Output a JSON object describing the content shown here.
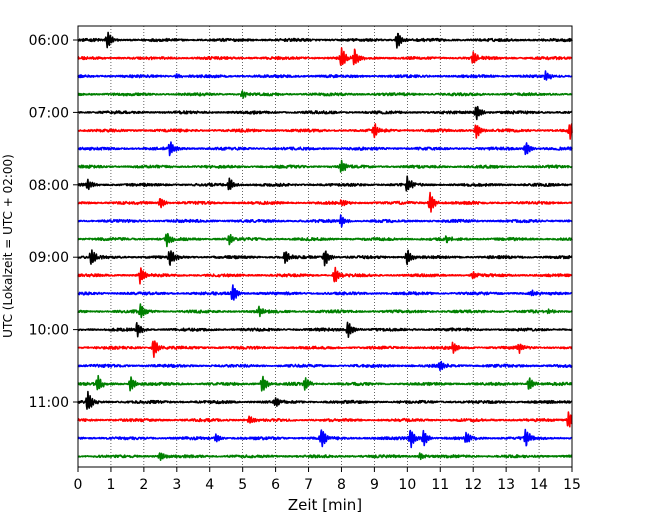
{
  "chart_data": {
    "type": "line",
    "title": "",
    "xlabel": "Zeit  [min]",
    "ylabel": "UTC (Lokalzeit = UTC + 02:00)",
    "xlim": [
      0,
      15
    ],
    "x_ticks": [
      0,
      1,
      2,
      3,
      4,
      5,
      6,
      7,
      8,
      9,
      10,
      11,
      12,
      13,
      14,
      15
    ],
    "x_tick_labels": [
      "0",
      "1",
      "2",
      "3",
      "4",
      "5",
      "6",
      "7",
      "8",
      "9",
      "10",
      "11",
      "12",
      "13",
      "14",
      "15"
    ],
    "y_tick_labels": [
      "06:00",
      "07:00",
      "08:00",
      "09:00",
      "10:00",
      "11:00"
    ],
    "trace_start_times": [
      "06:00",
      "06:15",
      "06:30",
      "06:45",
      "07:00",
      "07:15",
      "07:30",
      "07:45",
      "08:00",
      "08:15",
      "08:30",
      "08:45",
      "09:00",
      "09:15",
      "09:30",
      "09:45",
      "10:00",
      "10:15",
      "10:30",
      "10:45",
      "11:00",
      "11:15",
      "11:30",
      "11:45"
    ],
    "trace_colors": [
      "#000000",
      "#ff0000",
      "#0000ff",
      "#008000"
    ],
    "grid": "vertical-dotted",
    "events": [
      {
        "trace": 0,
        "t": 0.9,
        "amp": 0.9
      },
      {
        "trace": 0,
        "t": 9.7,
        "amp": 1.0
      },
      {
        "trace": 1,
        "t": 8.0,
        "amp": 1.2
      },
      {
        "trace": 1,
        "t": 8.4,
        "amp": 1.0
      },
      {
        "trace": 1,
        "t": 12.0,
        "amp": 0.8
      },
      {
        "trace": 2,
        "t": 14.2,
        "amp": 0.6
      },
      {
        "trace": 2,
        "t": 3.0,
        "amp": 0.3
      },
      {
        "trace": 3,
        "t": 5.0,
        "amp": 0.4
      },
      {
        "trace": 4,
        "t": 12.1,
        "amp": 0.9
      },
      {
        "trace": 5,
        "t": 9.0,
        "amp": 0.9
      },
      {
        "trace": 5,
        "t": 12.1,
        "amp": 0.9
      },
      {
        "trace": 5,
        "t": 14.95,
        "amp": 1.1
      },
      {
        "trace": 6,
        "t": 2.8,
        "amp": 0.8
      },
      {
        "trace": 6,
        "t": 13.6,
        "amp": 0.8
      },
      {
        "trace": 7,
        "t": 8.0,
        "amp": 0.8
      },
      {
        "trace": 8,
        "t": 0.3,
        "amp": 0.6
      },
      {
        "trace": 8,
        "t": 4.6,
        "amp": 0.8
      },
      {
        "trace": 8,
        "t": 10.0,
        "amp": 0.9
      },
      {
        "trace": 9,
        "t": 2.5,
        "amp": 0.6
      },
      {
        "trace": 9,
        "t": 8.0,
        "amp": 0.4
      },
      {
        "trace": 9,
        "t": 10.7,
        "amp": 1.2
      },
      {
        "trace": 10,
        "t": 8.0,
        "amp": 0.7
      },
      {
        "trace": 11,
        "t": 2.7,
        "amp": 0.8
      },
      {
        "trace": 11,
        "t": 4.6,
        "amp": 0.6
      },
      {
        "trace": 11,
        "t": 11.2,
        "amp": 0.4
      },
      {
        "trace": 12,
        "t": 0.4,
        "amp": 0.9
      },
      {
        "trace": 12,
        "t": 2.8,
        "amp": 1.0
      },
      {
        "trace": 12,
        "t": 6.3,
        "amp": 0.8
      },
      {
        "trace": 12,
        "t": 7.5,
        "amp": 1.0
      },
      {
        "trace": 12,
        "t": 10.0,
        "amp": 0.9
      },
      {
        "trace": 13,
        "t": 1.9,
        "amp": 1.0
      },
      {
        "trace": 13,
        "t": 7.8,
        "amp": 0.9
      },
      {
        "trace": 13,
        "t": 12.0,
        "amp": 0.4
      },
      {
        "trace": 14,
        "t": 4.7,
        "amp": 1.1
      },
      {
        "trace": 14,
        "t": 13.8,
        "amp": 0.4
      },
      {
        "trace": 15,
        "t": 1.9,
        "amp": 0.8
      },
      {
        "trace": 15,
        "t": 5.5,
        "amp": 0.5
      },
      {
        "trace": 15,
        "t": 14.3,
        "amp": 0.3
      },
      {
        "trace": 16,
        "t": 1.8,
        "amp": 0.8
      },
      {
        "trace": 16,
        "t": 8.2,
        "amp": 1.0
      },
      {
        "trace": 17,
        "t": 2.3,
        "amp": 1.1
      },
      {
        "trace": 17,
        "t": 11.4,
        "amp": 0.6
      },
      {
        "trace": 17,
        "t": 13.4,
        "amp": 0.5
      },
      {
        "trace": 18,
        "t": 11.0,
        "amp": 0.6
      },
      {
        "trace": 19,
        "t": 0.6,
        "amp": 0.9
      },
      {
        "trace": 19,
        "t": 1.6,
        "amp": 0.9
      },
      {
        "trace": 19,
        "t": 5.6,
        "amp": 1.0
      },
      {
        "trace": 19,
        "t": 6.9,
        "amp": 0.7
      },
      {
        "trace": 19,
        "t": 13.7,
        "amp": 0.8
      },
      {
        "trace": 20,
        "t": 0.3,
        "amp": 1.2
      },
      {
        "trace": 20,
        "t": 6.0,
        "amp": 0.5
      },
      {
        "trace": 21,
        "t": 5.2,
        "amp": 0.5
      },
      {
        "trace": 21,
        "t": 14.9,
        "amp": 1.0
      },
      {
        "trace": 22,
        "t": 4.2,
        "amp": 0.5
      },
      {
        "trace": 22,
        "t": 7.4,
        "amp": 1.2
      },
      {
        "trace": 22,
        "t": 10.1,
        "amp": 1.1
      },
      {
        "trace": 22,
        "t": 10.5,
        "amp": 0.9
      },
      {
        "trace": 22,
        "t": 11.8,
        "amp": 0.7
      },
      {
        "trace": 22,
        "t": 13.6,
        "amp": 1.0
      },
      {
        "trace": 23,
        "t": 2.5,
        "amp": 0.5
      },
      {
        "trace": 23,
        "t": 10.4,
        "amp": 0.4
      }
    ]
  }
}
